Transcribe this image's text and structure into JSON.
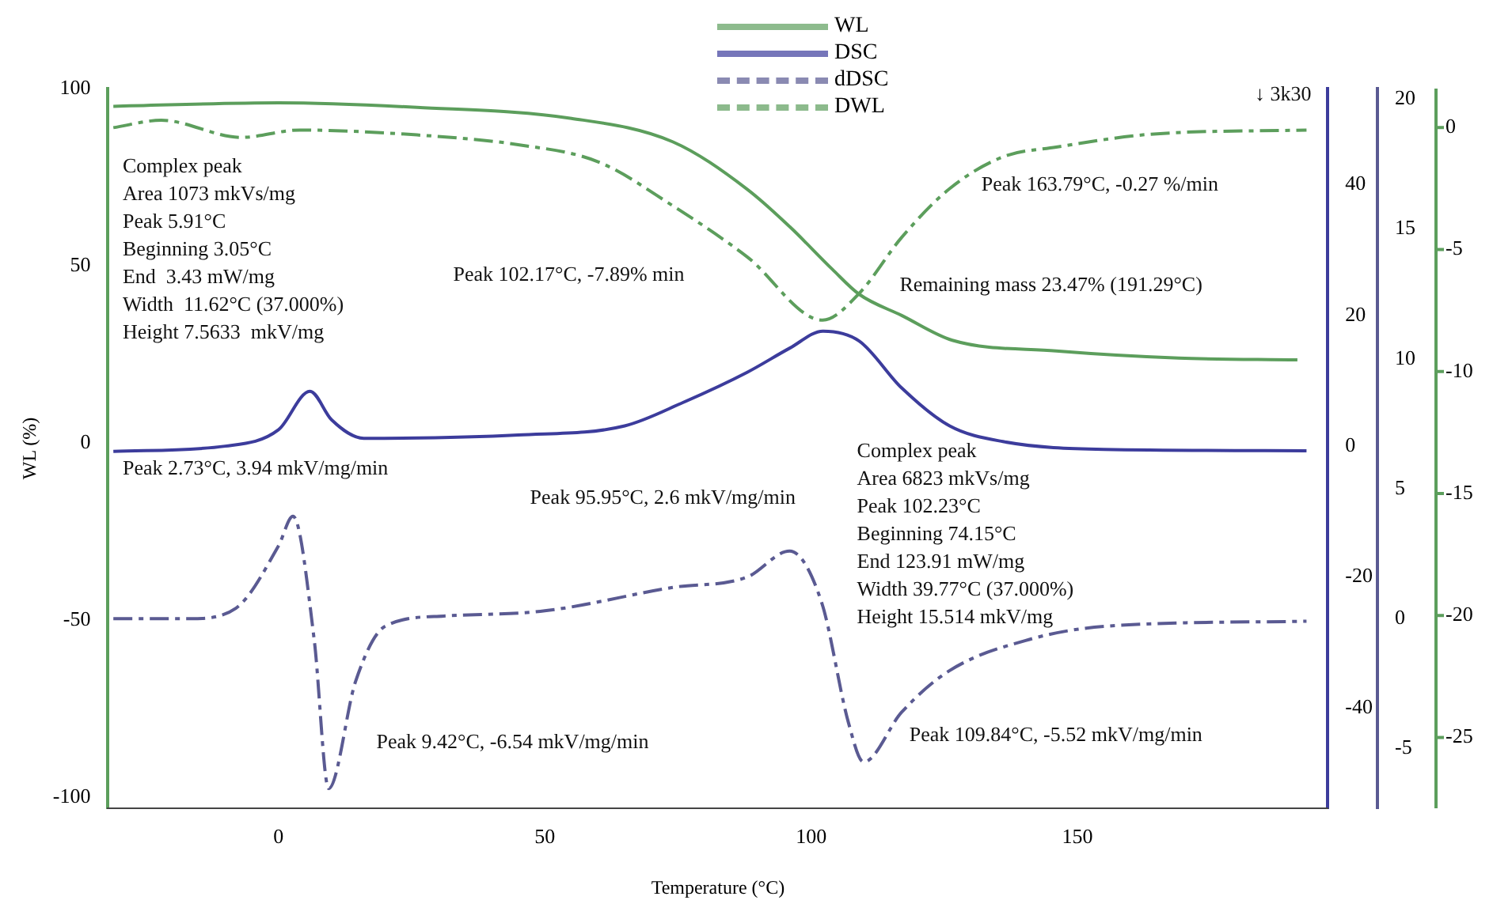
{
  "chart_data": [
    {
      "type": "line",
      "xlabel": "Temperature (°C)",
      "ylabel": "WL (%)",
      "xlim": [
        -32,
        197
      ],
      "xticks": [
        0,
        50,
        100,
        150
      ],
      "ylim": [
        -103,
        100
      ],
      "yticks": [
        -100,
        -50,
        0,
        50,
        100
      ],
      "y2lim": [
        -55.4,
        54.7
      ],
      "y2ticks": [
        -40,
        -20,
        0,
        20,
        40
      ],
      "y3lim": [
        -7.3,
        20.4
      ],
      "y3ticks": [
        -5,
        0,
        5,
        10,
        15,
        20
      ],
      "grid": false,
      "legend": "top",
      "marker": "none",
      "series": [
        {
          "name": "WL",
          "color": "#5c9e5c",
          "line_style": "solid",
          "x": [
            -31,
            0,
            26,
            55,
            74,
            88,
            96,
            104,
            109,
            117,
            126.5,
            146,
            169,
            191.29
          ],
          "values": [
            95,
            96,
            94.7,
            91.6,
            85,
            71.6,
            61,
            49,
            42,
            36,
            29,
            26,
            24,
            23.47
          ]
        },
        {
          "name": "DSC",
          "color": "#3c3c9c",
          "line_style": "solid",
          "axis": "y2",
          "x": [
            -31,
            -10,
            0,
            5.91,
            10,
            16,
            45,
            65,
            76,
            88,
            96,
            102.23,
            109,
            117,
            126,
            136,
            155,
            193
          ],
          "values": [
            -0.8,
            0,
            2.5,
            8.4,
            4,
            1.2,
            1.7,
            3.1,
            6.7,
            11.3,
            15,
            17.6,
            16.1,
            8.9,
            3.1,
            0.7,
            -0.5,
            -0.7
          ]
        },
        {
          "name": "dDSC",
          "color": "#5a5a92",
          "line_style": "dashed",
          "axis": "y3",
          "x": [
            -31,
            -16.5,
            -8,
            0,
            2.73,
            6.7,
            9.42,
            14.5,
            20,
            31,
            50,
            74,
            88,
            95.95,
            102,
            107,
            109.84,
            117,
            126,
            141,
            155,
            193
          ],
          "values": [
            0,
            0,
            0.4,
            2.8,
            3.94,
            -0.8,
            -6.54,
            -2.4,
            -0.3,
            0.1,
            0.3,
            1.2,
            1.6,
            2.6,
            0.6,
            -4,
            -5.52,
            -3.6,
            -2,
            -0.8,
            -0.3,
            -0.1
          ]
        }
      ],
      "annotations": [
        "Complex peak\nArea 1073 mkVs/mg\nPeak 5.91°C\nBeginning 3.05°C\nEnd  3.43 mW/mg\nWidth  11.62°C (37.000%)\nHeight 7.5633  mkV/mg",
        "Peak 102.17°C, -7.89% min",
        "Peak 163.79°C, -0.27 %/min",
        "Remaining mass 23.47% (191.29°C)",
        "Peak 2.73°C, 3.94 mkV/mg/min",
        "Peak 95.95°C, 2.6 mkV/mg/min",
        "Complex peak\nArea 6823 mkVs/mg\nPeak 102.23°C\nBeginning 74.15°C\nEnd 123.91 mW/mg\nWidth 39.77°C (37.000%)\nHeight 15.514 mkV/mg",
        "Peak 9.42°C, -6.54 mkV/mg/min",
        "Peak 109.84°C, -5.52 mkV/mg/min",
        "↓ 3k30"
      ]
    },
    {
      "type": "line",
      "xlim": [
        -32,
        197
      ],
      "ylim": [
        -27.9,
        1.6
      ],
      "yticks": [
        -25,
        -20,
        -15,
        -10,
        -5,
        0
      ],
      "tick_labels": "y",
      "grid": false,
      "legend": "top",
      "marker": "none",
      "series": [
        {
          "name": "DWL",
          "color": "#5c9e5c",
          "line_style": "dashed",
          "x": [
            -31,
            -22,
            -7,
            4,
            26,
            45,
            60,
            74,
            88,
            102.17,
            109,
            117,
            126,
            136,
            146,
            163.79,
            193
          ],
          "values": [
            0,
            0.3,
            -0.4,
            -0.1,
            -0.3,
            -0.7,
            -1.4,
            -3.2,
            -5.3,
            -7.89,
            -6.8,
            -4.5,
            -2.5,
            -1.2,
            -0.8,
            -0.27,
            -0.1
          ]
        }
      ]
    }
  ]
}
